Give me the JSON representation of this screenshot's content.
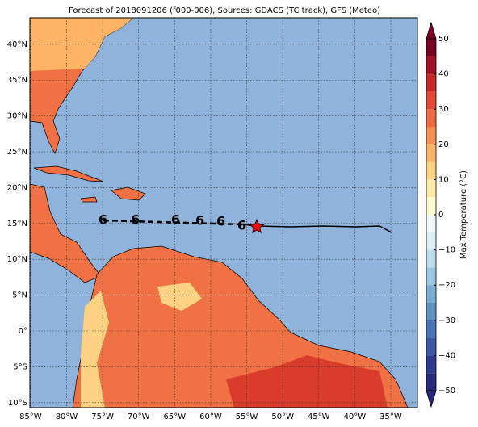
{
  "title": "Forecast of 2018091206 (f000-006), Sources: GDACS (TC track), GFS (Meteo)",
  "map": {
    "xlim": [
      -85.1,
      -31.3
    ],
    "ylim": [
      -10.7,
      43.7
    ],
    "xticks": [
      {
        "value": -85,
        "label": "85°W"
      },
      {
        "value": -80,
        "label": "80°W"
      },
      {
        "value": -75,
        "label": "75°W"
      },
      {
        "value": -70,
        "label": "70°W"
      },
      {
        "value": -65,
        "label": "65°W"
      },
      {
        "value": -60,
        "label": "60°W"
      },
      {
        "value": -55,
        "label": "55°W"
      },
      {
        "value": -50,
        "label": "50°W"
      },
      {
        "value": -45,
        "label": "45°W"
      },
      {
        "value": -40,
        "label": "40°W"
      },
      {
        "value": -35,
        "label": "35°W"
      }
    ],
    "yticks": [
      {
        "value": 40,
        "label": "40°N"
      },
      {
        "value": 35,
        "label": "35°N"
      },
      {
        "value": 30,
        "label": "30°N"
      },
      {
        "value": 25,
        "label": "25°N"
      },
      {
        "value": 20,
        "label": "20°N"
      },
      {
        "value": 15,
        "label": "15°N"
      },
      {
        "value": 10,
        "label": "10°N"
      },
      {
        "value": 5,
        "label": "5°N"
      },
      {
        "value": 0,
        "label": "0°"
      },
      {
        "value": -5,
        "label": "5°S"
      },
      {
        "value": -10,
        "label": "10°S"
      }
    ]
  },
  "colorbar": {
    "label": "Max Temperature (°C)",
    "lim": [
      -50,
      50
    ],
    "ticks": [
      50,
      40,
      30,
      20,
      10,
      0,
      {
        "value": -10,
        "label": "−10"
      },
      {
        "value": -20,
        "label": "−20"
      },
      {
        "value": -30,
        "label": "−30"
      },
      {
        "value": -40,
        "label": "−40"
      },
      {
        "value": -50,
        "label": "−50"
      }
    ],
    "colors": [
      "#26287a",
      "#2b3990",
      "#3d56a6",
      "#4a74b4",
      "#5f93c4",
      "#7cadd3",
      "#9cc7e0",
      "#bcdceb",
      "#d9edf3",
      "#eef8f8",
      "#fffbd0",
      "#fee9a6",
      "#fed283",
      "#fdb466",
      "#f99153",
      "#f26b43",
      "#e34a33",
      "#c62a2a",
      "#a50f26",
      "#7a0021"
    ]
  }
}
